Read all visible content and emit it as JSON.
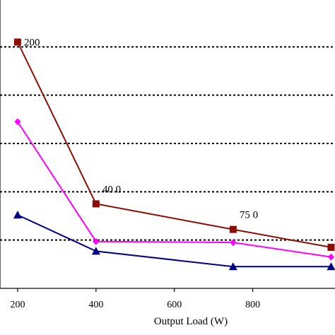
{
  "chart_data": {
    "type": "line",
    "title": "",
    "xlabel": "Output Load (W)",
    "ylabel": "",
    "xlim": [
      155,
      1010
    ],
    "ylim": [
      0,
      6
    ],
    "x_ticks": [
      200,
      400,
      600,
      800
    ],
    "y_grid_values": [
      1,
      2,
      3,
      4,
      5
    ],
    "grid": "horizontal dashed",
    "legend": "none",
    "series": [
      {
        "color": "#8b0e04",
        "marker": "square",
        "x": [
          200,
          400,
          750,
          1000
        ],
        "y": [
          5.1,
          1.75,
          1.22,
          0.85
        ]
      },
      {
        "color": "#ff00ff",
        "marker": "diamond",
        "x": [
          200,
          400,
          750,
          1000
        ],
        "y": [
          3.45,
          0.97,
          0.95,
          0.65
        ]
      },
      {
        "color": "#000080",
        "marker": "triangle",
        "x": [
          200,
          400,
          750,
          1000
        ],
        "y": [
          1.52,
          0.77,
          0.45,
          0.45
        ]
      }
    ],
    "annotations": [
      {
        "text": "200",
        "x": 200,
        "y": 5.1
      },
      {
        "text": "40 0",
        "x": 400,
        "y": 1.75
      },
      {
        "text": "75 0",
        "x": 750,
        "y": 1.22
      }
    ]
  }
}
